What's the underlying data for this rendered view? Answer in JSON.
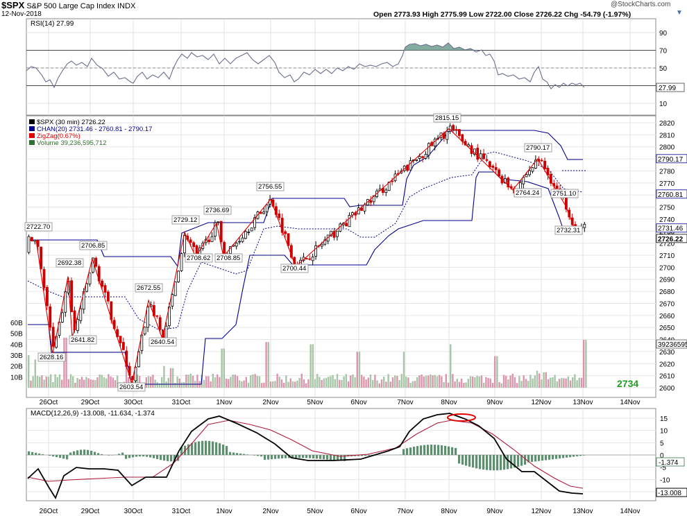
{
  "header": {
    "symbol": "$SPX",
    "name": "S&P 500 Large Cap Index",
    "exchange": "INDX",
    "date": "12-Nov-2018",
    "ohlc": "Open 2773.93  High 2775.99  Low 2722.00  Close 2726.22  Chg -54.79 (-1.97%)",
    "watermark": "@StockCharts.com"
  },
  "rsi": {
    "label": "RSI(14) 27.99",
    "current": "27.99",
    "overbought": 70,
    "oversold": 30,
    "ticks": [
      "90",
      "70",
      "50",
      "30",
      "10"
    ]
  },
  "price": {
    "legend": [
      "$SPX (30 min) 2726.22",
      "CHAN(20) 2731.46 - 2760.81 - 2790.17",
      "ZigZag(0.67%)",
      "Volume 39,236,595,712"
    ],
    "ticks": [
      "2820",
      "2810",
      "2800",
      "2790",
      "2780",
      "2770",
      "2760",
      "2750",
      "2740",
      "2730",
      "2720",
      "2710",
      "2700",
      "2690",
      "2680",
      "2670",
      "2660",
      "2650",
      "2640",
      "2630",
      "2620",
      "2610",
      "2600"
    ],
    "markers": {
      "chan_upper": "2790.17",
      "chan_mid": "2760.81",
      "chan_lower": "2731.46",
      "close": "2726.22",
      "volume": "39236595"
    },
    "volume_ticks": [
      "60B",
      "50B",
      "40B",
      "30B",
      "20B",
      "10B"
    ],
    "zigzag_labels": [
      "2722.70",
      "2692.38",
      "2706.85",
      "2628.16",
      "2641.82",
      "2603.54",
      "2672.55",
      "2640.54",
      "2729.12",
      "2736.69",
      "2708.62",
      "2708.85",
      "2756.55",
      "2700.44",
      "2815.15",
      "2790.17",
      "2764.24",
      "2751.10",
      "2732.31"
    ],
    "note": "2734",
    "colors": {
      "zigzag": "#e00000",
      "channel": "#00008b",
      "up": "#000000",
      "down": "#cc0000"
    }
  },
  "dates": [
    "26Oct",
    "29Oct",
    "30Oct",
    "31Oct",
    "1Nov",
    "2Nov",
    "5Nov",
    "6Nov",
    "7Nov",
    "8Nov",
    "9Nov",
    "12Nov",
    "13Nov",
    "14Nov"
  ],
  "macd": {
    "label": "MACD(12,26,9) -13.008, -11.634, -1.374",
    "markers": {
      "hist": "-1.374",
      "macd": "-13.008"
    },
    "ticks": [
      "15",
      "10",
      "5",
      "0",
      "-5",
      "-10",
      "-15"
    ]
  },
  "chart_data": {
    "type": "line",
    "title": "$SPX S&P 500 Large Cap Index INDX (30 min)",
    "ylim": [
      2595,
      2825
    ],
    "x": [
      "26Oct",
      "29Oct",
      "30Oct",
      "31Oct",
      "1Nov",
      "2Nov",
      "5Nov",
      "6Nov",
      "7Nov",
      "8Nov",
      "9Nov",
      "12Nov",
      "13Nov"
    ],
    "series": [
      {
        "name": "ZigZag(0.67%)",
        "points": [
          [
            "26Oct",
            2722.7
          ],
          [
            "26Oct",
            2628.16
          ],
          [
            "29Oct",
            2692.38
          ],
          [
            "29Oct",
            2641.82
          ],
          [
            "29Oct",
            2706.85
          ],
          [
            "30Oct",
            2603.54
          ],
          [
            "30Oct",
            2672.55
          ],
          [
            "30Oct",
            2640.54
          ],
          [
            "31Oct",
            2729.12
          ],
          [
            "31Oct",
            2708.62
          ],
          [
            "1Nov",
            2736.69
          ],
          [
            "1Nov",
            2708.85
          ],
          [
            "2Nov",
            2756.55
          ],
          [
            "5Nov",
            2700.44
          ],
          [
            "8Nov",
            2815.15
          ],
          [
            "9Nov",
            2764.24
          ],
          [
            "12Nov",
            2790.17
          ],
          [
            "12Nov",
            2732.31
          ],
          [
            "12Nov",
            2751.1
          ]
        ]
      }
    ]
  }
}
